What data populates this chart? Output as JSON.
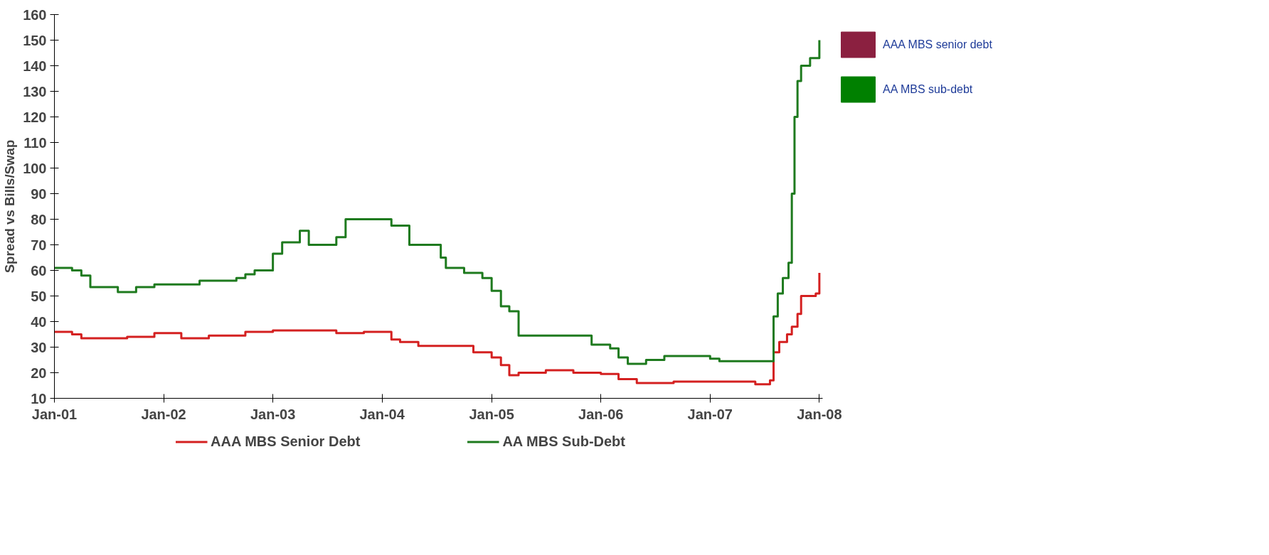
{
  "chart_data": {
    "type": "step",
    "ylabel": "Spread vs Bills/Swap",
    "xlim": [
      "2001-01-01",
      "2008-01-12"
    ],
    "xticks": [
      {
        "value": "2001-01-01",
        "label": "Jan-01"
      },
      {
        "value": "2002-01-01",
        "label": "Jan-02"
      },
      {
        "value": "2003-01-01",
        "label": "Jan-03"
      },
      {
        "value": "2004-01-01",
        "label": "Jan-04"
      },
      {
        "value": "2005-01-01",
        "label": "Jan-05"
      },
      {
        "value": "2006-01-01",
        "label": "Jan-06"
      },
      {
        "value": "2007-01-01",
        "label": "Jan-07"
      },
      {
        "value": "2008-01-01",
        "label": "Jan-08"
      }
    ],
    "ylim": [
      10,
      160
    ],
    "yticks": [
      10,
      20,
      30,
      40,
      50,
      60,
      70,
      80,
      90,
      100,
      110,
      120,
      130,
      140,
      150,
      160
    ],
    "grid": false,
    "legend": "bottom",
    "line_style": "solid",
    "marker": "none",
    "series": [
      {
        "name": "AAA MBS Senior Debt",
        "color": "#d42020",
        "x": [
          "2001-01-01",
          "2001-03-01",
          "2001-04-01",
          "2001-09-01",
          "2001-12-01",
          "2002-03-01",
          "2002-06-01",
          "2002-10-01",
          "2003-01-01",
          "2003-06-01",
          "2003-08-01",
          "2003-11-01",
          "2004-02-01",
          "2004-03-01",
          "2004-05-01",
          "2004-11-01",
          "2005-01-01",
          "2005-02-01",
          "2005-03-01",
          "2005-04-01",
          "2005-07-01",
          "2005-10-01",
          "2006-01-01",
          "2006-03-01",
          "2006-05-01",
          "2006-09-01",
          "2007-04-01",
          "2007-06-01",
          "2007-07-20",
          "2007-08-01",
          "2007-08-20",
          "2007-09-15",
          "2007-10-01",
          "2007-10-20",
          "2007-11-01",
          "2007-12-20",
          "2008-01-01"
        ],
        "values": [
          36,
          35,
          33.5,
          34,
          35.5,
          33.5,
          34.5,
          36,
          36.5,
          36.5,
          35.5,
          36,
          33,
          32,
          30.5,
          28,
          26,
          23,
          19,
          20,
          21,
          20,
          19.5,
          17.5,
          16,
          16.5,
          16.5,
          15.5,
          17,
          28,
          32,
          35,
          38,
          43,
          50,
          51,
          59
        ]
      },
      {
        "name": "AA MBS Sub-Debt",
        "color": "#1e7a1e",
        "x": [
          "2001-01-01",
          "2001-03-01",
          "2001-04-01",
          "2001-05-01",
          "2001-08-01",
          "2001-10-01",
          "2001-12-01",
          "2002-05-01",
          "2002-09-01",
          "2002-10-01",
          "2002-11-01",
          "2003-01-01",
          "2003-02-01",
          "2003-04-01",
          "2003-05-01",
          "2003-08-01",
          "2003-09-01",
          "2004-02-01",
          "2004-04-01",
          "2004-07-15",
          "2004-08-01",
          "2004-10-01",
          "2004-12-01",
          "2005-01-01",
          "2005-02-01",
          "2005-03-01",
          "2005-04-01",
          "2005-12-01",
          "2006-02-01",
          "2006-03-01",
          "2006-04-01",
          "2006-06-01",
          "2006-08-01",
          "2007-01-01",
          "2007-02-01",
          "2007-07-20",
          "2007-08-01",
          "2007-08-15",
          "2007-09-01",
          "2007-09-20",
          "2007-10-01",
          "2007-10-10",
          "2007-10-20",
          "2007-11-01",
          "2007-12-01",
          "2008-01-01"
        ],
        "values": [
          61,
          60,
          58,
          53.5,
          51.5,
          53.5,
          54.5,
          56,
          57,
          58.5,
          60,
          66.5,
          71,
          75.5,
          70,
          73,
          80,
          77.5,
          70,
          65,
          61,
          59,
          57,
          52,
          46,
          44,
          34.5,
          31,
          29.5,
          26,
          23.5,
          25,
          26.5,
          25.5,
          24.5,
          24.5,
          42,
          51,
          57,
          63,
          90,
          120,
          134,
          140,
          143,
          150
        ]
      },
      {
        "name": "AAA MBS senior debt",
        "type": "bar",
        "color": "#8b2040"
      },
      {
        "name": "AA MBS sub-debt",
        "type": "bar",
        "color": "#008000"
      }
    ]
  }
}
